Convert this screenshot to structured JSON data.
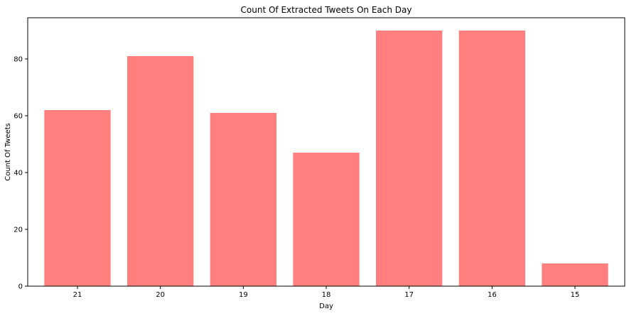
{
  "chart_data": {
    "type": "bar",
    "title": "Count Of Extracted Tweets On Each Day",
    "xlabel": "Day",
    "ylabel": "Count Of Tweets",
    "categories": [
      "21",
      "20",
      "19",
      "18",
      "17",
      "16",
      "15"
    ],
    "values": [
      62,
      81,
      61,
      47,
      90,
      90,
      8
    ],
    "ylim": [
      0,
      94.5
    ],
    "yticks": [
      0,
      20,
      40,
      60,
      80
    ],
    "bar_color": "#ff7f7f",
    "grid": false,
    "legend": "none"
  }
}
